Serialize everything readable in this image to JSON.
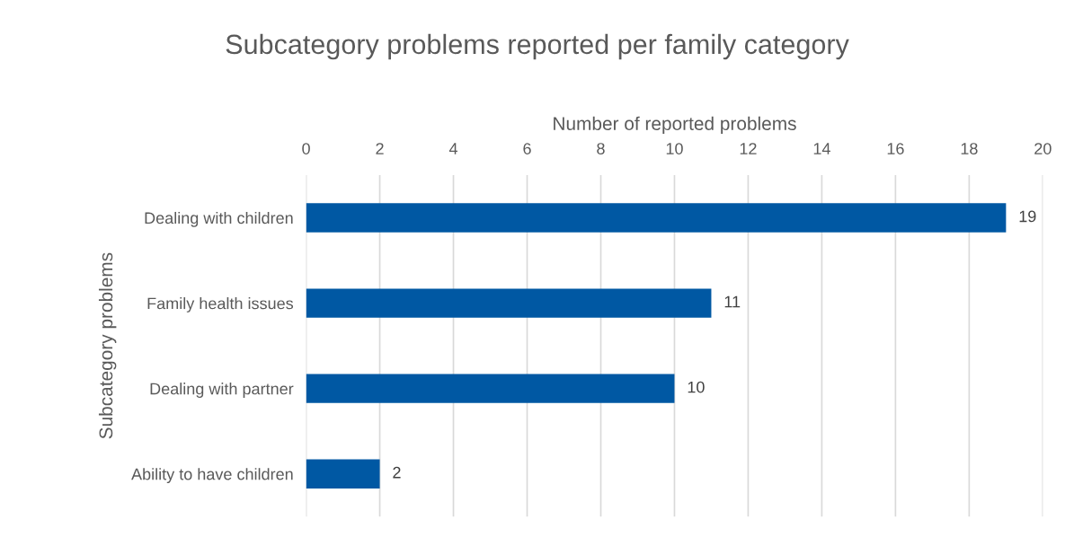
{
  "chart_data": {
    "type": "bar",
    "orientation": "horizontal",
    "title": "Subcategory problems reported per family category",
    "xlabel": "Number of reported problems",
    "ylabel": "Subcategory problems",
    "categories": [
      "Dealing with children",
      "Family health issues",
      "Dealing with partner",
      "Ability to have children"
    ],
    "values": [
      19,
      11,
      10,
      2
    ],
    "color": "#0058a3",
    "xlim": [
      0,
      20
    ],
    "xticks": [
      0,
      2,
      4,
      6,
      8,
      10,
      12,
      14,
      16,
      18,
      20
    ],
    "grid": "x",
    "data_labels": true
  }
}
